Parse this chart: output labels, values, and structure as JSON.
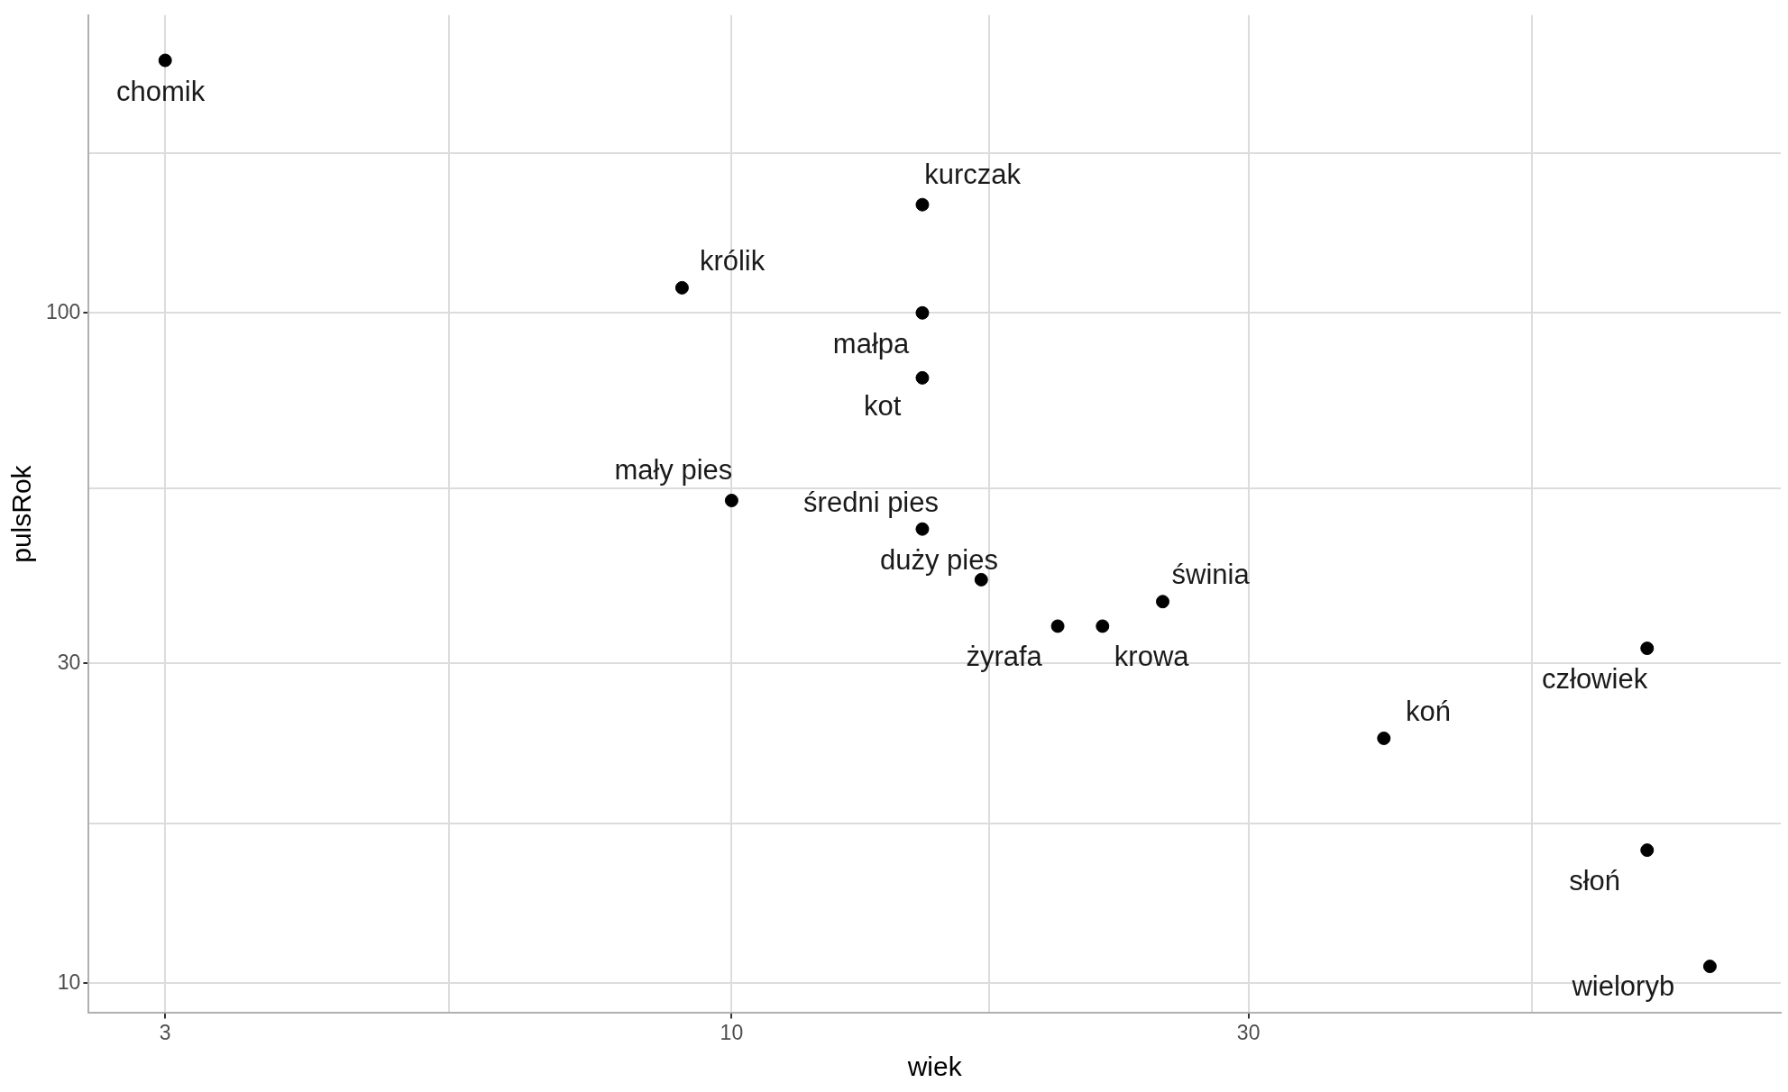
{
  "chart_data": {
    "type": "scatter",
    "xlabel": "wiek",
    "ylabel": "pulsRok",
    "log": "xy",
    "grid": true,
    "legend": false,
    "marker": "circle",
    "x": [
      3,
      15,
      9,
      15,
      15,
      10,
      15,
      17,
      20,
      22,
      25,
      40,
      70,
      70,
      80
    ],
    "series": [
      {
        "color": "#000000",
        "values": [
          238,
          145,
          109,
          100,
          80,
          52.5,
          47.6,
          40,
          34.1,
          34.1,
          37.1,
          23.2,
          31.6,
          15.8,
          10.6
        ]
      }
    ],
    "xlim": [
      2.55,
      93
    ],
    "ylim": [
      9.03,
      278
    ],
    "xticks": [
      3,
      {
        "value": 5.48,
        "label": null
      },
      10,
      {
        "value": 17.3,
        "label": null
      },
      30,
      {
        "value": 54.8,
        "label": null
      }
    ],
    "yticks": [
      10,
      {
        "value": 17.3,
        "label": null
      },
      30,
      {
        "value": 54.8,
        "label": null
      },
      100,
      {
        "value": 173,
        "label": null
      }
    ],
    "annotations": [
      {
        "text": "chomik",
        "x": 3,
        "y": 238
      },
      {
        "text": "kurczak",
        "x": 15,
        "y": 145
      },
      {
        "text": "królik",
        "x": 9,
        "y": 109
      },
      {
        "text": "małpa",
        "x": 15,
        "y": 100
      },
      {
        "text": "kot",
        "x": 15,
        "y": 80
      },
      {
        "text": "mały pies",
        "x": 10,
        "y": 52.5
      },
      {
        "text": "średni pies",
        "x": 15,
        "y": 47.6
      },
      {
        "text": "duży pies",
        "x": 17,
        "y": 40
      },
      {
        "text": "żyrafa",
        "x": 20,
        "y": 34.1
      },
      {
        "text": "krowa",
        "x": 22,
        "y": 34.1
      },
      {
        "text": "świnia",
        "x": 25,
        "y": 37.1
      },
      {
        "text": "koń",
        "x": 40,
        "y": 23.2
      },
      {
        "text": "człowiek",
        "x": 70,
        "y": 31.6
      },
      {
        "text": "słoń",
        "x": 70,
        "y": 15.8
      },
      {
        "text": "wieloryb",
        "x": 80,
        "y": 10.6
      }
    ]
  }
}
